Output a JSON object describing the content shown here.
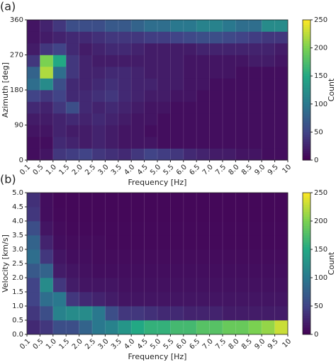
{
  "chart_data": [
    {
      "type": "heatmap",
      "panel_label": "(a)",
      "xlabel": "Frequency [Hz]",
      "ylabel": "Azimuth [deg]",
      "colorbar_label": "Count",
      "colormap": "viridis",
      "grid": true,
      "xbins": [
        "0.1",
        "0.5",
        "1.0",
        "1.5",
        "2.0",
        "2.5",
        "3.0",
        "3.5",
        "4.0",
        "4.5",
        "5.0",
        "5.5",
        "6.0",
        "6.5",
        "7.0",
        "7.5",
        "8.0",
        "8.5",
        "9.0",
        "9.5",
        "10"
      ],
      "ybins": [
        0,
        30,
        60,
        90,
        120,
        150,
        180,
        210,
        240,
        270,
        300,
        330,
        360
      ],
      "ylim": [
        0,
        360
      ],
      "yticks": [
        0,
        90,
        180,
        270,
        360
      ],
      "zlim": [
        0,
        250
      ],
      "zticks": [
        0,
        50,
        100,
        150,
        200,
        250
      ],
      "values": [
        [
          10,
          15,
          40,
          45,
          50,
          40,
          35,
          30,
          40,
          50,
          45,
          40,
          30,
          25,
          20,
          20,
          15,
          15,
          10,
          10
        ],
        [
          10,
          10,
          30,
          25,
          20,
          25,
          20,
          15,
          15,
          15,
          10,
          10,
          10,
          10,
          10,
          10,
          10,
          10,
          10,
          10
        ],
        [
          15,
          15,
          25,
          20,
          20,
          25,
          20,
          15,
          15,
          10,
          10,
          10,
          10,
          10,
          10,
          10,
          10,
          10,
          10,
          10
        ],
        [
          20,
          20,
          25,
          30,
          25,
          30,
          25,
          20,
          15,
          15,
          10,
          10,
          10,
          10,
          10,
          10,
          10,
          10,
          10,
          10
        ],
        [
          30,
          25,
          40,
          60,
          30,
          25,
          30,
          25,
          20,
          15,
          15,
          10,
          10,
          10,
          10,
          10,
          10,
          10,
          10,
          10
        ],
        [
          50,
          40,
          50,
          30,
          30,
          35,
          40,
          30,
          25,
          20,
          20,
          15,
          15,
          10,
          10,
          10,
          10,
          10,
          10,
          10
        ],
        [
          90,
          120,
          60,
          30,
          25,
          30,
          35,
          30,
          25,
          25,
          20,
          20,
          15,
          15,
          10,
          10,
          10,
          10,
          10,
          10
        ],
        [
          80,
          220,
          90,
          40,
          25,
          25,
          30,
          30,
          25,
          20,
          20,
          20,
          15,
          15,
          15,
          15,
          10,
          10,
          10,
          10
        ],
        [
          40,
          200,
          150,
          40,
          25,
          20,
          20,
          20,
          20,
          20,
          20,
          20,
          15,
          15,
          15,
          15,
          15,
          20,
          20,
          15
        ],
        [
          20,
          40,
          50,
          30,
          20,
          25,
          30,
          30,
          25,
          20,
          20,
          20,
          20,
          25,
          25,
          25,
          25,
          25,
          25,
          20
        ],
        [
          15,
          20,
          25,
          30,
          30,
          35,
          40,
          40,
          40,
          45,
          45,
          50,
          55,
          60,
          60,
          55,
          50,
          45,
          40,
          40
        ],
        [
          15,
          25,
          40,
          60,
          60,
          60,
          70,
          70,
          80,
          90,
          90,
          100,
          100,
          110,
          110,
          100,
          90,
          90,
          120,
          120
        ]
      ]
    },
    {
      "type": "heatmap",
      "panel_label": "(b)",
      "xlabel": "Frequency [Hz]",
      "ylabel": "Velocity [km/s]",
      "colorbar_label": "Count",
      "colormap": "viridis",
      "grid": true,
      "xbins": [
        "0.1",
        "0.5",
        "1.0",
        "1.5",
        "2.0",
        "2.5",
        "3.0",
        "3.5",
        "4.0",
        "4.5",
        "5.0",
        "5.5",
        "6.0",
        "6.5",
        "7.0",
        "7.5",
        "8.0",
        "8.5",
        "9.0",
        "9.5",
        "10"
      ],
      "ybins": [
        0,
        0.5,
        1,
        1.5,
        2,
        2.5,
        3,
        3.5,
        4,
        4.5,
        5
      ],
      "ylim": [
        0,
        5
      ],
      "yticks": [
        {
          "value": 0,
          "label": "0.0"
        },
        0.5,
        {
          "value": 1,
          "label": "1.0"
        },
        1.5,
        {
          "value": 2,
          "label": "2.0"
        },
        2.5,
        {
          "value": 3,
          "label": "3.0"
        },
        3.5,
        {
          "value": 4,
          "label": "4.0"
        },
        4.5,
        {
          "value": 5,
          "label": "5.0"
        }
      ],
      "zlim": [
        0,
        250
      ],
      "zticks": [
        0,
        50,
        100,
        150,
        200,
        250
      ],
      "values": [
        [
          30,
          40,
          60,
          60,
          80,
          100,
          110,
          130,
          150,
          160,
          160,
          170,
          170,
          180,
          180,
          190,
          190,
          200,
          210,
          230
        ],
        [
          40,
          60,
          110,
          120,
          120,
          100,
          60,
          40,
          40,
          35,
          30,
          30,
          25,
          25,
          25,
          20,
          20,
          20,
          20,
          20
        ],
        [
          50,
          90,
          100,
          40,
          30,
          25,
          20,
          15,
          15,
          15,
          15,
          15,
          15,
          15,
          15,
          15,
          15,
          15,
          15,
          15
        ],
        [
          50,
          120,
          40,
          20,
          15,
          15,
          15,
          12,
          12,
          12,
          12,
          12,
          12,
          12,
          12,
          12,
          12,
          12,
          12,
          12
        ],
        [
          70,
          80,
          20,
          15,
          12,
          10,
          10,
          10,
          10,
          10,
          10,
          10,
          10,
          10,
          10,
          10,
          10,
          10,
          10,
          10
        ],
        [
          90,
          40,
          15,
          10,
          10,
          8,
          8,
          8,
          8,
          8,
          8,
          8,
          8,
          8,
          8,
          8,
          8,
          8,
          8,
          8
        ],
        [
          80,
          25,
          10,
          8,
          8,
          8,
          6,
          6,
          6,
          6,
          6,
          6,
          6,
          6,
          6,
          6,
          6,
          6,
          6,
          6
        ],
        [
          60,
          15,
          8,
          6,
          6,
          6,
          6,
          6,
          6,
          6,
          6,
          6,
          6,
          6,
          6,
          6,
          6,
          6,
          6,
          6
        ],
        [
          40,
          10,
          6,
          5,
          5,
          5,
          5,
          5,
          5,
          5,
          5,
          5,
          5,
          5,
          5,
          5,
          5,
          5,
          5,
          5
        ],
        [
          35,
          10,
          5,
          5,
          5,
          5,
          5,
          5,
          5,
          5,
          5,
          5,
          5,
          5,
          5,
          5,
          5,
          5,
          5,
          5
        ]
      ]
    }
  ]
}
